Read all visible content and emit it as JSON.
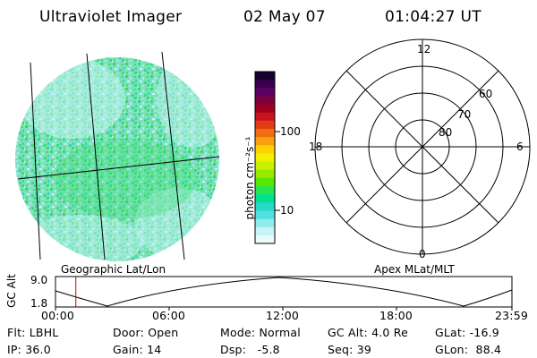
{
  "header": {
    "instrument": "Ultraviolet Imager",
    "date": "02 May 07",
    "time": "01:04:27 UT"
  },
  "geo_panel": {
    "caption": "Geographic Lat/Lon"
  },
  "colorbar": {
    "unit_label": "photon cm⁻²s⁻¹",
    "ticks": [
      "100",
      "10"
    ],
    "colors": [
      "#1a0030",
      "#3a0050",
      "#5a0060",
      "#7a0040",
      "#a00020",
      "#c8141e",
      "#e03c14",
      "#f07010",
      "#f8a010",
      "#ffd200",
      "#f0f000",
      "#c8f000",
      "#96eb00",
      "#5ae600",
      "#28e650",
      "#00e090",
      "#28d8c8",
      "#50e0e0",
      "#90ecec",
      "#c8f4f4",
      "#e8fafa"
    ]
  },
  "polar_panel": {
    "caption": "Apex MLat/MLT",
    "mlt_labels": {
      "top": "12",
      "left": "18",
      "right": "6",
      "bottom": "0"
    },
    "lat_labels": [
      "60",
      "70",
      "80"
    ]
  },
  "orbit_plot": {
    "ylabel": "GC Alt",
    "y_ticks": [
      "9.0",
      "1.8"
    ],
    "x_ticks": [
      "00:00",
      "06:00",
      "12:00",
      "18:00",
      "23:59"
    ],
    "current_time_marker_hours": 1.07,
    "marker_color": "#cc0000"
  },
  "status": {
    "flt": "Flt: LBHL",
    "ip": "IP: 36.0",
    "door": "Door: Open",
    "gain": "Gain: 14",
    "mode": "Mode: Normal",
    "dsp": "Dsp:   -5.8",
    "gc_alt": "GC Alt: 4.0 Re",
    "seq": "Seq: 39",
    "glat": "GLat: -16.9",
    "glon": "GLon:  88.4"
  }
}
